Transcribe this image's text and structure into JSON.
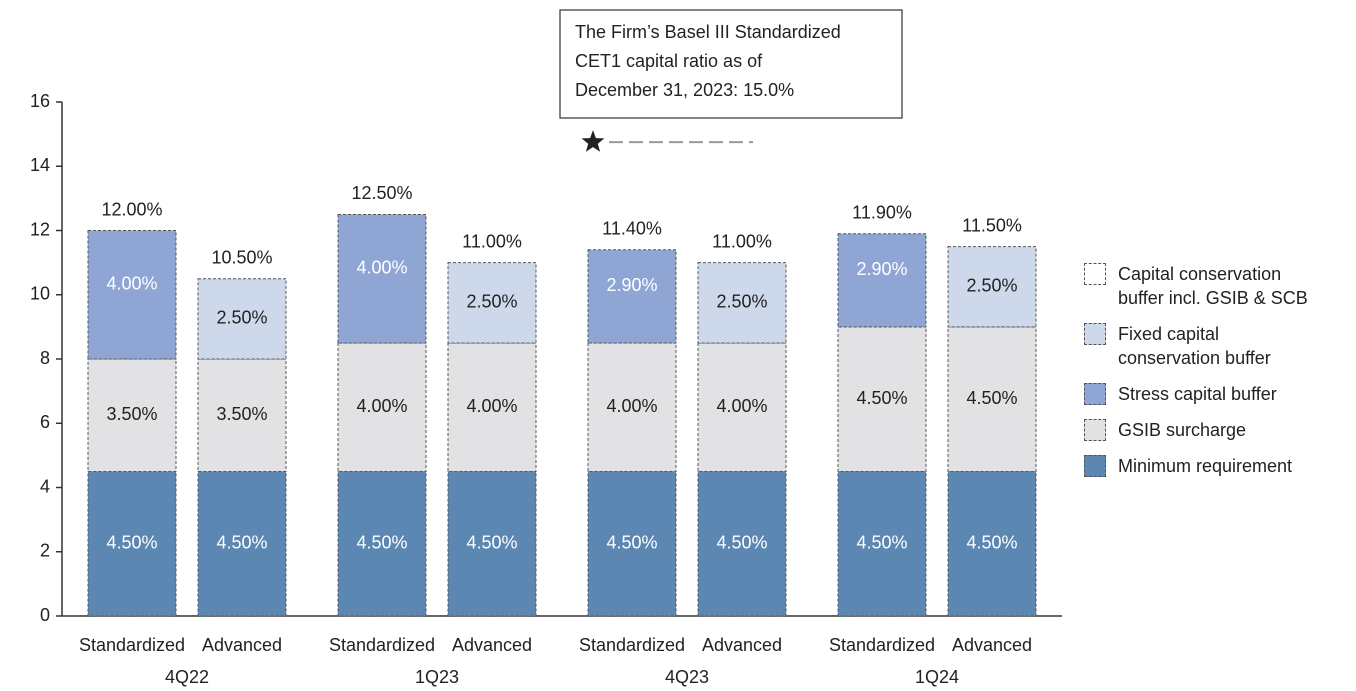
{
  "chart_data": {
    "type": "stacked-bar",
    "categories": [
      "Standardized",
      "Advanced",
      "Standardized",
      "Advanced",
      "Standardized",
      "Advanced",
      "Standardized",
      "Advanced"
    ],
    "groups": [
      "4Q22",
      "1Q23",
      "4Q23",
      "1Q24"
    ],
    "series": [
      {
        "name": "Minimum requirement",
        "color": "#5b87b2",
        "values": [
          4.5,
          4.5,
          4.5,
          4.5,
          4.5,
          4.5,
          4.5,
          4.5
        ],
        "value_labels": [
          "4.50%",
          "4.50%",
          "4.50%",
          "4.50%",
          "4.50%",
          "4.50%",
          "4.50%",
          "4.50%"
        ]
      },
      {
        "name": "GSIB surcharge",
        "color": "#e2e2e4",
        "values": [
          3.5,
          3.5,
          4,
          4,
          4,
          4,
          4.5,
          4.5
        ],
        "value_labels": [
          "3.50%",
          "3.50%",
          "4.00%",
          "4.00%",
          "4.00%",
          "4.00%",
          "4.50%",
          "4.50%"
        ]
      },
      {
        "name": "Stress capital buffer",
        "color": "#8fa6d4",
        "values": [
          4,
          null,
          4,
          null,
          2.9,
          null,
          2.9,
          null
        ],
        "value_labels": [
          "4.00%",
          null,
          "4.00%",
          null,
          "2.90%",
          null,
          "2.90%",
          null
        ]
      },
      {
        "name": "Fixed capital conservation buffer",
        "color": "#cdd8ea",
        "values": [
          null,
          2.5,
          null,
          2.5,
          null,
          2.5,
          null,
          2.5
        ],
        "value_labels": [
          null,
          "2.50%",
          null,
          "2.50%",
          null,
          "2.50%",
          null,
          "2.50%"
        ]
      },
      {
        "name": "Capital conservation buffer incl. GSIB & SCB",
        "color": "#ffffff",
        "values": [
          null,
          null,
          null,
          null,
          null,
          null,
          null,
          null
        ]
      }
    ],
    "totals": [
      12,
      10.5,
      12.5,
      11,
      11.4,
      11,
      11.9,
      11.5
    ],
    "total_labels": [
      "12.00%",
      "10.50%",
      "12.50%",
      "11.00%",
      "11.40%",
      "11.00%",
      "11.90%",
      "11.50%"
    ],
    "annotation": {
      "lines": [
        "The Firm’s Basel III Standardized",
        "CET1 capital ratio as of",
        "December 31, 2023: 15.0%"
      ],
      "value": 15,
      "category_index": 4
    },
    "ylim": [
      0,
      16
    ],
    "yticks": [
      0,
      2,
      4,
      6,
      8,
      10,
      12,
      14,
      16
    ]
  }
}
